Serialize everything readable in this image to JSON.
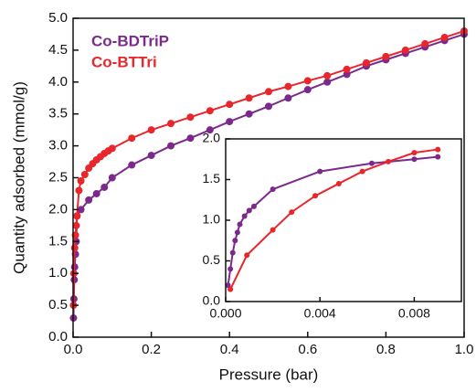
{
  "chart_data": [
    {
      "type": "line",
      "x_label": "Pressure (bar)",
      "y_label": "Quantity adsorbed (mmol/g)",
      "xlim": [
        0,
        1.0
      ],
      "ylim": [
        0,
        5.0
      ],
      "xticks": [
        {
          "value": 0,
          "label": "0.0"
        },
        0.2,
        0.4,
        0.6,
        0.8,
        {
          "value": 1,
          "label": "1.0"
        }
      ],
      "yticks": [
        {
          "value": 0,
          "label": "0.0"
        },
        0.5,
        {
          "value": 1,
          "label": "1.0"
        },
        1.5,
        {
          "value": 2,
          "label": "2.0"
        },
        2.5,
        {
          "value": 3,
          "label": "3.0"
        },
        3.5,
        {
          "value": 4,
          "label": "4.0"
        },
        4.5,
        {
          "value": 5,
          "label": "5.0"
        }
      ],
      "legend": "upper left",
      "series": [
        {
          "name": "Co-BDTriP",
          "color": "#7b2a8c",
          "x": [
            0.001,
            0.002,
            0.003,
            0.004,
            0.006,
            0.008,
            0.01,
            0.02,
            0.04,
            0.06,
            0.08,
            0.1,
            0.15,
            0.2,
            0.25,
            0.3,
            0.35,
            0.4,
            0.45,
            0.5,
            0.55,
            0.6,
            0.65,
            0.7,
            0.75,
            0.8,
            0.85,
            0.9,
            0.95,
            1.0
          ],
          "values": [
            0.3,
            0.6,
            0.9,
            1.1,
            1.3,
            1.5,
            1.9,
            2.0,
            2.15,
            2.25,
            2.35,
            2.5,
            2.7,
            2.85,
            3.0,
            3.12,
            3.25,
            3.38,
            3.5,
            3.62,
            3.75,
            3.88,
            4.0,
            4.12,
            4.25,
            4.35,
            4.45,
            4.55,
            4.65,
            4.75
          ]
        },
        {
          "name": "Co-BTTri",
          "color": "#e8262b",
          "x": [
            0.001,
            0.002,
            0.004,
            0.006,
            0.008,
            0.01,
            0.015,
            0.02,
            0.03,
            0.04,
            0.05,
            0.06,
            0.07,
            0.08,
            0.09,
            0.1,
            0.15,
            0.2,
            0.25,
            0.3,
            0.35,
            0.4,
            0.45,
            0.5,
            0.55,
            0.6,
            0.65,
            0.7,
            0.75,
            0.8,
            0.85,
            0.9,
            0.95,
            1.0
          ],
          "values": [
            0.5,
            1.0,
            1.4,
            1.6,
            1.75,
            1.9,
            2.3,
            2.45,
            2.55,
            2.65,
            2.72,
            2.78,
            2.83,
            2.88,
            2.92,
            2.96,
            3.12,
            3.25,
            3.35,
            3.45,
            3.55,
            3.65,
            3.75,
            3.85,
            3.93,
            4.02,
            4.1,
            4.2,
            4.3,
            4.4,
            4.5,
            4.6,
            4.7,
            4.8
          ]
        }
      ]
    },
    {
      "type": "line",
      "xlim": [
        0,
        0.01
      ],
      "ylim": [
        0,
        2.0
      ],
      "xticks": [
        {
          "value": 0,
          "label": "0.000"
        },
        {
          "value": 0.004,
          "label": "0.004"
        },
        {
          "value": 0.008,
          "label": "0.008"
        }
      ],
      "yticks": [
        {
          "value": 0,
          "label": "0.0"
        },
        0.5,
        {
          "value": 1,
          "label": "1.0"
        },
        1.5,
        {
          "value": 2,
          "label": "2.0"
        }
      ],
      "series": [
        {
          "color": "#7b2a8c",
          "x": [
            0.0001,
            0.0002,
            0.0003,
            0.0004,
            0.0005,
            0.0006,
            0.0008,
            0.001,
            0.0012,
            0.002,
            0.004,
            0.0062,
            0.008,
            0.009
          ],
          "values": [
            0.2,
            0.4,
            0.6,
            0.75,
            0.85,
            0.95,
            1.05,
            1.12,
            1.17,
            1.38,
            1.6,
            1.7,
            1.75,
            1.78
          ]
        },
        {
          "color": "#e8262b",
          "x": [
            0.0002,
            0.0009,
            0.002,
            0.0028,
            0.0038,
            0.0048,
            0.0058,
            0.0069,
            0.008,
            0.009
          ],
          "values": [
            0.15,
            0.57,
            0.88,
            1.1,
            1.3,
            1.45,
            1.6,
            1.72,
            1.83,
            1.87
          ]
        }
      ]
    }
  ]
}
